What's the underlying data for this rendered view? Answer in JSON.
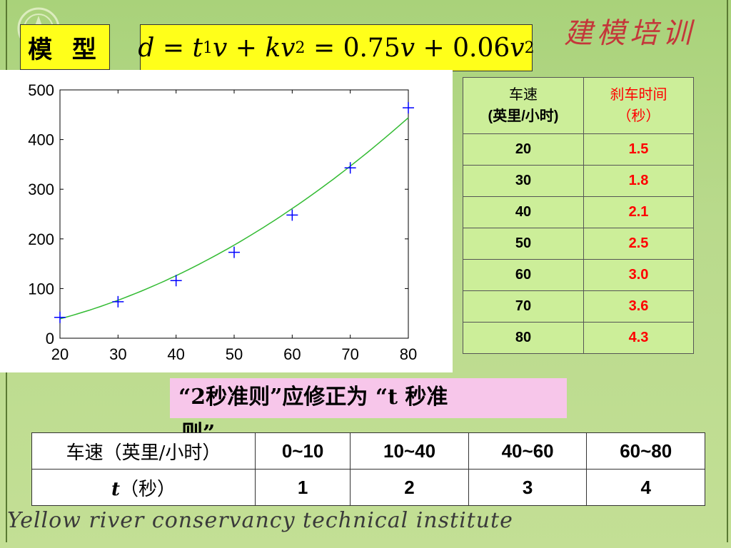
{
  "header": {
    "model_label": "模 型",
    "banner_text": "建模培训"
  },
  "formula": {
    "d": "d",
    "eq": " = ",
    "t": "t",
    "sub1": "1",
    "v": "v",
    "plus": " + ",
    "kv": "kv",
    "sq": "2",
    "eq2": " = 0.75",
    "v2": "v",
    "plus2": " + 0.06",
    "v3": "v",
    "sq2": "2"
  },
  "chart_data": {
    "type": "scatter",
    "x_ticks": [
      "20",
      "30",
      "40",
      "50",
      "60",
      "70",
      "80"
    ],
    "y_ticks": [
      "0",
      "100",
      "200",
      "300",
      "400",
      "500"
    ],
    "xlim": [
      20,
      80
    ],
    "ylim": [
      0,
      500
    ],
    "grid": false,
    "series": [
      {
        "marker": "+",
        "color": "#0000ff",
        "x": [
          20,
          30,
          40,
          50,
          60,
          70,
          80
        ],
        "y": [
          42,
          73.5,
          116,
          173,
          248,
          343,
          464
        ]
      },
      {
        "line": true,
        "color": "#33bb33",
        "formula": "0.75x+0.06x^2",
        "x": [
          20,
          30,
          40,
          50,
          60,
          70,
          80
        ],
        "y": [
          39,
          76.5,
          126,
          187.5,
          261,
          346.5,
          444
        ]
      }
    ]
  },
  "speed_table": {
    "header_speed_line1": "车速",
    "header_speed_line2": "(英里/小时)",
    "header_time_line1": "刹车时间",
    "header_time_line2": "（秒）",
    "rows": [
      {
        "speed": "20",
        "time": "1.5"
      },
      {
        "speed": "30",
        "time": "1.8"
      },
      {
        "speed": "40",
        "time": "2.1"
      },
      {
        "speed": "50",
        "time": "2.5"
      },
      {
        "speed": "60",
        "time": "3.0"
      },
      {
        "speed": "70",
        "time": "3.6"
      },
      {
        "speed": "80",
        "time": "4.3"
      }
    ]
  },
  "note": {
    "line1": "“2秒准则”应修正为 “t 秒准",
    "line2": "则”"
  },
  "rule_table": {
    "row1_label": "车速（英里/小时）",
    "row1_values": [
      "0~10",
      "10~40",
      "40~60",
      "60~80"
    ],
    "row2_label_t": "t",
    "row2_label_rest": "（秒）",
    "row2_values": [
      "1",
      "2",
      "3",
      "4"
    ]
  },
  "footer": {
    "text": "Yellow river conservancy technical institute"
  }
}
